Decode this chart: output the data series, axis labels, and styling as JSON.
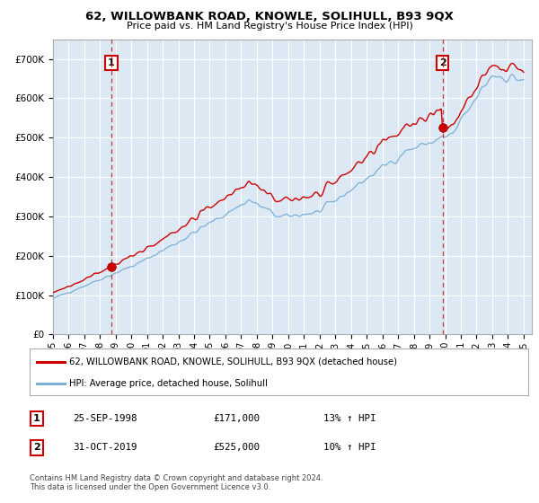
{
  "title": "62, WILLOWBANK ROAD, KNOWLE, SOLIHULL, B93 9QX",
  "subtitle": "Price paid vs. HM Land Registry's House Price Index (HPI)",
  "ylabel_ticks": [
    "£0",
    "£100K",
    "£200K",
    "£300K",
    "£400K",
    "£500K",
    "£600K",
    "£700K"
  ],
  "ytick_values": [
    0,
    100000,
    200000,
    300000,
    400000,
    500000,
    600000,
    700000
  ],
  "ylim": [
    0,
    750000
  ],
  "xlim_start": 1995.0,
  "xlim_end": 2025.5,
  "sale1_date": 1998.73,
  "sale1_price": 171000,
  "sale2_date": 2019.83,
  "sale2_price": 525000,
  "background_color": "#ffffff",
  "plot_bg_color": "#dce9f5",
  "grid_color": "#ffffff",
  "line_color_property": "#cc0000",
  "line_color_hpi": "#7bafd4",
  "legend_label_property": "62, WILLOWBANK ROAD, KNOWLE, SOLIHULL, B93 9QX (detached house)",
  "legend_label_hpi": "HPI: Average price, detached house, Solihull",
  "table_row1": [
    "1",
    "25-SEP-1998",
    "£171,000",
    "13% ↑ HPI"
  ],
  "table_row2": [
    "2",
    "31-OCT-2019",
    "£525,000",
    "10% ↑ HPI"
  ],
  "footnote": "Contains HM Land Registry data © Crown copyright and database right 2024.\nThis data is licensed under the Open Government Licence v3.0.",
  "xtick_years": [
    1995,
    1996,
    1997,
    1998,
    1999,
    2000,
    2001,
    2002,
    2003,
    2004,
    2005,
    2006,
    2007,
    2008,
    2009,
    2010,
    2011,
    2012,
    2013,
    2014,
    2015,
    2016,
    2017,
    2018,
    2019,
    2020,
    2021,
    2022,
    2023,
    2024,
    2025
  ]
}
